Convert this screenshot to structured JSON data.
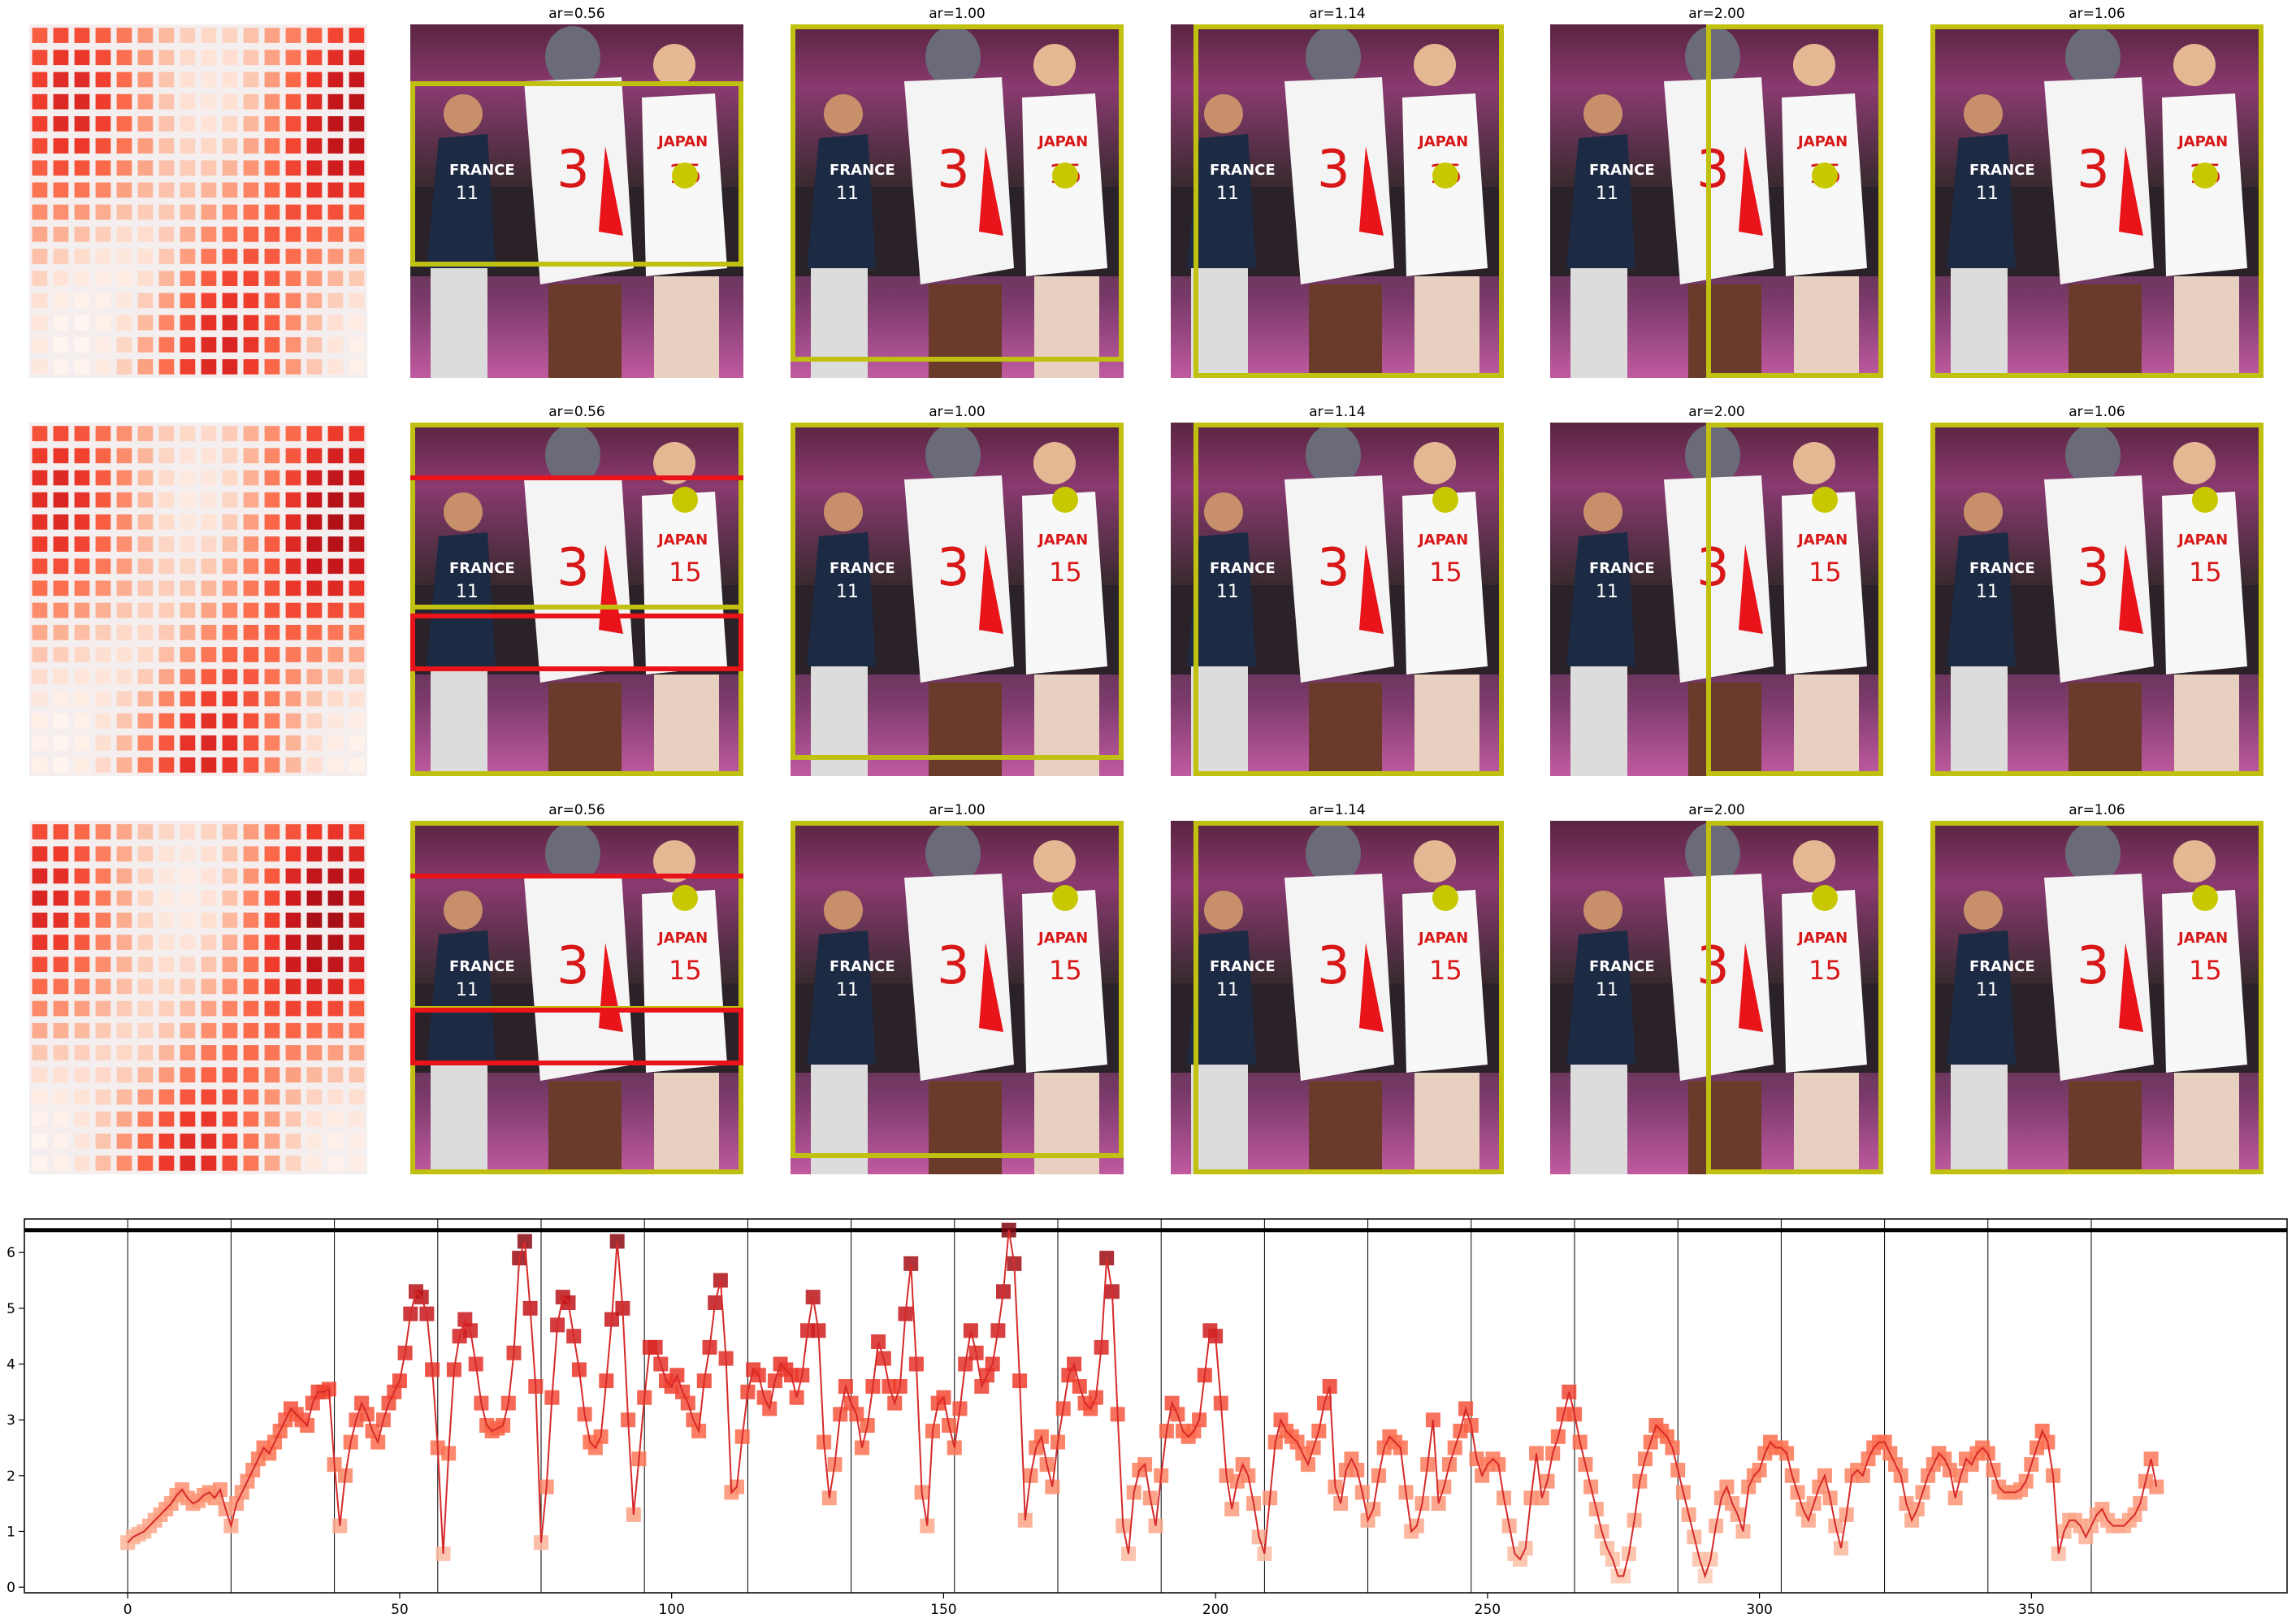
{
  "panels": {
    "titles": [
      "ar=0.56",
      "ar=1.00",
      "ar=1.14",
      "ar=2.00",
      "ar=1.06"
    ],
    "rows": 3,
    "photo_label": "basketball players photo (FRANCE vs JAPAN, TOKYO 2020)",
    "shirt_texts": [
      "FRANCE",
      "11",
      "3",
      "JAPAN",
      "15"
    ]
  },
  "colors": {
    "box_yellow": "#c0c010",
    "box_red": "#e8141a",
    "dot_yellow": "#c8c800",
    "line_red": "#d62a2a",
    "marker_light": "#fcbba1",
    "marker_dark": "#a50f15"
  },
  "chart_data": {
    "type": "line",
    "xlim": [
      -19,
      397
    ],
    "ylim": [
      -0.1,
      6.6
    ],
    "xticks": [
      0,
      50,
      100,
      150,
      200,
      250,
      300,
      350
    ],
    "yticks": [
      0,
      1,
      2,
      3,
      4,
      5,
      6
    ],
    "hline": 6.4,
    "vlines": [
      0,
      19,
      38,
      57,
      76,
      95,
      114,
      133,
      152,
      171,
      190,
      209,
      228,
      247,
      266,
      285,
      304,
      323,
      342,
      361
    ],
    "series": [
      {
        "x_start": 0,
        "values": [
          0.8,
          0.9,
          0.95,
          1.0,
          1.1,
          1.2,
          1.3,
          1.4,
          1.5,
          1.65,
          1.75,
          1.6,
          1.5,
          1.55,
          1.65,
          1.7,
          1.6,
          1.75,
          1.4,
          1.1,
          1.5,
          1.7,
          1.9,
          2.1,
          2.3,
          2.5,
          2.4,
          2.6,
          2.8,
          3.0,
          3.2,
          3.1,
          3.0,
          2.9,
          3.3,
          3.5,
          3.5,
          3.55,
          2.2,
          1.1,
          2.0,
          2.6,
          3.0,
          3.3,
          3.1,
          2.8,
          2.6,
          3.0,
          3.3,
          3.5,
          3.7,
          4.2,
          4.9,
          5.3,
          5.2,
          4.9,
          3.9,
          2.5,
          0.6,
          2.4,
          3.9,
          4.5,
          4.8,
          4.6,
          4.0,
          3.3,
          2.9,
          2.8,
          2.85,
          2.9,
          3.3,
          4.2,
          5.9,
          6.2,
          5.0,
          3.6,
          0.8,
          1.8,
          3.4,
          4.7,
          5.2,
          5.1,
          4.5,
          3.9,
          3.1,
          2.6,
          2.5,
          2.7,
          3.7,
          4.8,
          6.2,
          5.0,
          3.0,
          1.3,
          2.3,
          3.4,
          4.3,
          4.3,
          4.0,
          3.7,
          3.6,
          3.8,
          3.5,
          3.3,
          3.0,
          2.8,
          3.7,
          4.3,
          5.1,
          5.5,
          4.1,
          1.7,
          1.8,
          2.7,
          3.5,
          3.9,
          3.8,
          3.4,
          3.2,
          3.7,
          4.0,
          3.9,
          3.8,
          3.4,
          3.8,
          4.6,
          5.2,
          4.6,
          2.6,
          1.6,
          2.2,
          3.1,
          3.6,
          3.3,
          3.1,
          2.5,
          2.9,
          3.6,
          4.4,
          4.1,
          3.6,
          3.3,
          3.6,
          4.9,
          5.8,
          4.0,
          1.7,
          1.1,
          2.8,
          3.3,
          3.4,
          2.9,
          2.5,
          3.2,
          4.0,
          4.6,
          4.2,
          3.6,
          3.8,
          4.0,
          4.6,
          5.3,
          6.4,
          5.8,
          3.7,
          1.2,
          2.0,
          2.5,
          2.7,
          2.2,
          1.8,
          2.6,
          3.2,
          3.8,
          4.0,
          3.6,
          3.3,
          3.2,
          3.4,
          4.3,
          5.9,
          5.3,
          3.1,
          1.1,
          0.6,
          1.7,
          2.1,
          2.2,
          1.6,
          1.1,
          2.0,
          2.8,
          3.3,
          3.1,
          2.8,
          2.7,
          2.8,
          3.0,
          3.8,
          4.6,
          4.5,
          3.3,
          2.0,
          1.4,
          1.9,
          2.2,
          2.0,
          1.5,
          0.9,
          0.6,
          1.6,
          2.6,
          3.0,
          2.8,
          2.7,
          2.6,
          2.4,
          2.2,
          2.5,
          2.8,
          3.3,
          3.6,
          1.8,
          1.5,
          2.1,
          2.3,
          2.1,
          1.7,
          1.2,
          1.4,
          2.0,
          2.5,
          2.7,
          2.6,
          2.5,
          1.7,
          1.0,
          1.1,
          1.5,
          2.2,
          3.0,
          1.5,
          1.8,
          2.2,
          2.5,
          2.8,
          3.2,
          2.9,
          2.3,
          2.0,
          2.2,
          2.3,
          2.2,
          1.6,
          1.1,
          0.6,
          0.5,
          0.7,
          1.6,
          2.4,
          1.6,
          1.9,
          2.4,
          2.7,
          3.1,
          3.5,
          3.1,
          2.6,
          2.2,
          1.8,
          1.4,
          1.0,
          0.7,
          0.5,
          0.2,
          0.2,
          0.6,
          1.2,
          1.9,
          2.3,
          2.6,
          2.9,
          2.8,
          2.7,
          2.5,
          2.1,
          1.7,
          1.3,
          0.9,
          0.5,
          0.2,
          0.5,
          1.1,
          1.6,
          1.8,
          1.5,
          1.3,
          1.0,
          1.8,
          2.0,
          2.1,
          2.4,
          2.6,
          2.5,
          2.5,
          2.4,
          2.0,
          1.7,
          1.4,
          1.2,
          1.5,
          1.8,
          2.0,
          1.6,
          1.1,
          0.7,
          1.3,
          2.0,
          2.1,
          2.0,
          2.3,
          2.5,
          2.6,
          2.6,
          2.4,
          2.2,
          2.0,
          1.5,
          1.2,
          1.4,
          1.7,
          2.0,
          2.2,
          2.4,
          2.3,
          2.1,
          1.6,
          2.0,
          2.3,
          2.2,
          2.4,
          2.5,
          2.4,
          2.1,
          1.8,
          1.7,
          1.7,
          1.7,
          1.75,
          1.9,
          2.2,
          2.5,
          2.8,
          2.6,
          2.0,
          0.6,
          1.0,
          1.2,
          1.2,
          1.1,
          0.9,
          1.1,
          1.3,
          1.4,
          1.2,
          1.1,
          1.1,
          1.1,
          1.2,
          1.3,
          1.5,
          1.9,
          2.3,
          1.8
        ]
      }
    ]
  }
}
